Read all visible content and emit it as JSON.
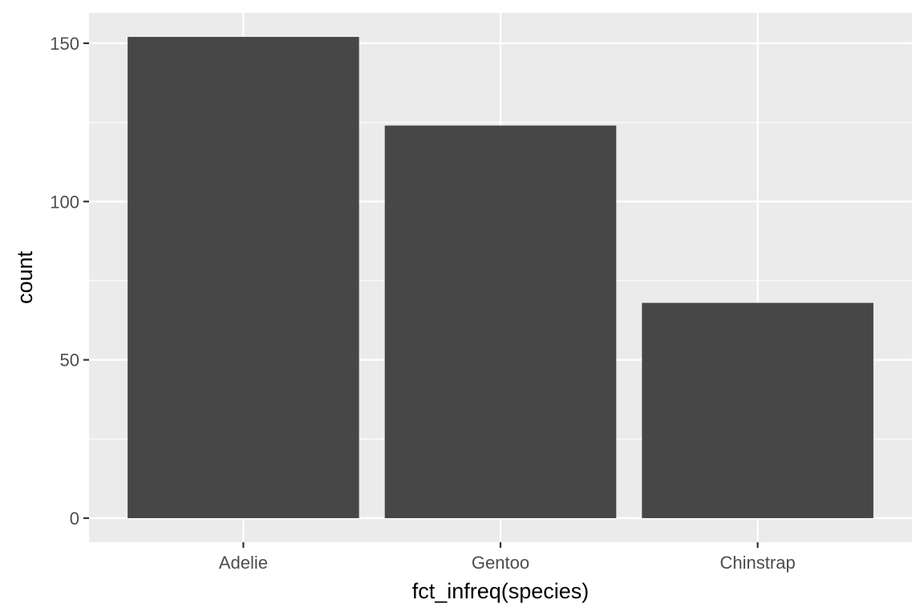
{
  "chart_data": {
    "type": "bar",
    "categories": [
      "Adelie",
      "Gentoo",
      "Chinstrap"
    ],
    "values": [
      152,
      124,
      68
    ],
    "title": "",
    "xlabel": "fct_infreq(species)",
    "ylabel": "count",
    "ylim": [
      -7.6,
      159.6
    ],
    "yticks": [
      0,
      50,
      100,
      150
    ],
    "ytick_labels": [
      "0",
      "50",
      "100",
      "150"
    ],
    "grid": true,
    "colors": {
      "panel": "#ebebeb",
      "grid": "#ffffff",
      "bar": "#474747",
      "text": "#4d4d4d",
      "axis_title": "#000000"
    }
  }
}
